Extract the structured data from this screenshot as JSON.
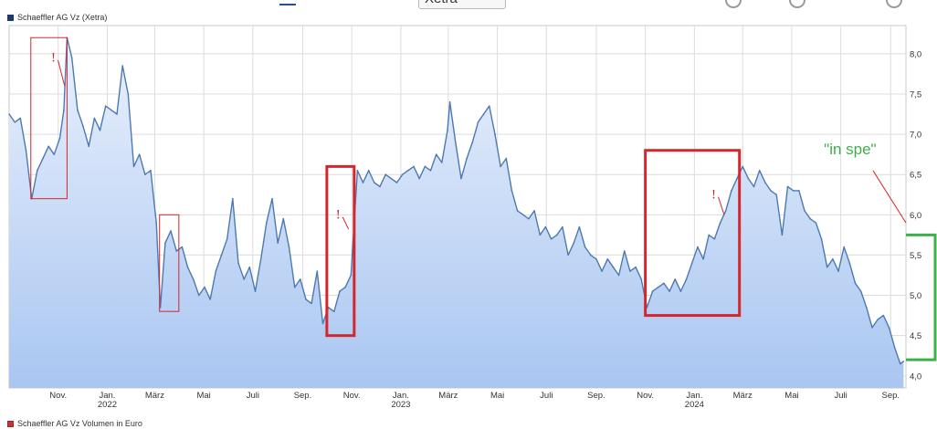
{
  "header": {
    "exchange_select": "Xetra"
  },
  "colors": {
    "line": "#4d79b1",
    "fill_top": "#eaf1fc",
    "fill_bottom": "#a9c6f1",
    "grid": "#dcdcdc",
    "annotation_red": "#d4262d",
    "annotation_green": "#3cb04a"
  },
  "chart_data": {
    "type": "area",
    "title": "Schaeffler AG Vz (Xetra)",
    "volume_legend": "Schaeffler AG Vz Volumen in Euro",
    "y_axis_side": "right",
    "ylim": [
      3.85,
      8.35
    ],
    "y_ticks": [
      "4,0",
      "4,5",
      "5,0",
      "5,5",
      "6,0",
      "6,5",
      "7,0",
      "7,5",
      "8,0"
    ],
    "y_tick_values": [
      4.0,
      4.5,
      5.0,
      5.5,
      6.0,
      6.5,
      7.0,
      7.5,
      8.0
    ],
    "xlim": [
      "2021-09-01",
      "2024-09-20"
    ],
    "x_ticks": [
      {
        "date": "2021-11-01",
        "label": "Nov.",
        "year": ""
      },
      {
        "date": "2022-01-01",
        "label": "Jan.",
        "year": "2022"
      },
      {
        "date": "2022-03-01",
        "label": "März",
        "year": ""
      },
      {
        "date": "2022-05-01",
        "label": "Mai",
        "year": ""
      },
      {
        "date": "2022-07-01",
        "label": "Juli",
        "year": ""
      },
      {
        "date": "2022-09-01",
        "label": "Sep.",
        "year": ""
      },
      {
        "date": "2022-11-01",
        "label": "Nov.",
        "year": ""
      },
      {
        "date": "2023-01-01",
        "label": "Jan.",
        "year": "2023"
      },
      {
        "date": "2023-03-01",
        "label": "März",
        "year": ""
      },
      {
        "date": "2023-05-01",
        "label": "Mai",
        "year": ""
      },
      {
        "date": "2023-07-01",
        "label": "Juli",
        "year": ""
      },
      {
        "date": "2023-09-01",
        "label": "Sep.",
        "year": ""
      },
      {
        "date": "2023-11-01",
        "label": "Nov.",
        "year": ""
      },
      {
        "date": "2024-01-01",
        "label": "Jan.",
        "year": "2024"
      },
      {
        "date": "2024-03-01",
        "label": "März",
        "year": ""
      },
      {
        "date": "2024-05-01",
        "label": "Mai",
        "year": ""
      },
      {
        "date": "2024-07-01",
        "label": "Juli",
        "year": ""
      },
      {
        "date": "2024-09-01",
        "label": "Sep.",
        "year": ""
      }
    ],
    "grid": true,
    "series": [
      {
        "points": [
          [
            "2021-09-01",
            7.25
          ],
          [
            "2021-09-08",
            7.15
          ],
          [
            "2021-09-15",
            7.2
          ],
          [
            "2021-09-22",
            6.8
          ],
          [
            "2021-09-29",
            6.2
          ],
          [
            "2021-10-06",
            6.55
          ],
          [
            "2021-10-13",
            6.7
          ],
          [
            "2021-10-20",
            6.85
          ],
          [
            "2021-10-27",
            6.75
          ],
          [
            "2021-11-03",
            6.95
          ],
          [
            "2021-11-08",
            7.3
          ],
          [
            "2021-11-12",
            8.2
          ],
          [
            "2021-11-18",
            7.95
          ],
          [
            "2021-11-25",
            7.3
          ],
          [
            "2021-12-02",
            7.1
          ],
          [
            "2021-12-09",
            6.85
          ],
          [
            "2021-12-16",
            7.2
          ],
          [
            "2021-12-23",
            7.05
          ],
          [
            "2021-12-30",
            7.35
          ],
          [
            "2022-01-06",
            7.3
          ],
          [
            "2022-01-13",
            7.25
          ],
          [
            "2022-01-20",
            7.85
          ],
          [
            "2022-01-27",
            7.5
          ],
          [
            "2022-02-03",
            6.6
          ],
          [
            "2022-02-10",
            6.75
          ],
          [
            "2022-02-17",
            6.5
          ],
          [
            "2022-02-24",
            6.55
          ],
          [
            "2022-03-03",
            5.9
          ],
          [
            "2022-03-08",
            4.85
          ],
          [
            "2022-03-14",
            5.65
          ],
          [
            "2022-03-21",
            5.8
          ],
          [
            "2022-03-28",
            5.55
          ],
          [
            "2022-04-04",
            5.6
          ],
          [
            "2022-04-11",
            5.35
          ],
          [
            "2022-04-18",
            5.2
          ],
          [
            "2022-04-25",
            5.0
          ],
          [
            "2022-05-02",
            5.1
          ],
          [
            "2022-05-09",
            4.95
          ],
          [
            "2022-05-16",
            5.3
          ],
          [
            "2022-05-23",
            5.5
          ],
          [
            "2022-05-30",
            5.7
          ],
          [
            "2022-06-06",
            6.2
          ],
          [
            "2022-06-13",
            5.4
          ],
          [
            "2022-06-20",
            5.2
          ],
          [
            "2022-06-27",
            5.35
          ],
          [
            "2022-07-04",
            5.05
          ],
          [
            "2022-07-11",
            5.45
          ],
          [
            "2022-07-18",
            5.9
          ],
          [
            "2022-07-25",
            6.2
          ],
          [
            "2022-08-01",
            5.65
          ],
          [
            "2022-08-08",
            5.95
          ],
          [
            "2022-08-15",
            5.6
          ],
          [
            "2022-08-22",
            5.1
          ],
          [
            "2022-08-29",
            5.2
          ],
          [
            "2022-09-05",
            4.95
          ],
          [
            "2022-09-12",
            4.9
          ],
          [
            "2022-09-19",
            5.3
          ],
          [
            "2022-09-26",
            4.65
          ],
          [
            "2022-10-03",
            4.85
          ],
          [
            "2022-10-10",
            4.8
          ],
          [
            "2022-10-17",
            5.05
          ],
          [
            "2022-10-24",
            5.1
          ],
          [
            "2022-10-31",
            5.25
          ],
          [
            "2022-11-04",
            5.9
          ],
          [
            "2022-11-08",
            6.55
          ],
          [
            "2022-11-15",
            6.4
          ],
          [
            "2022-11-22",
            6.55
          ],
          [
            "2022-11-29",
            6.4
          ],
          [
            "2022-12-06",
            6.35
          ],
          [
            "2022-12-13",
            6.5
          ],
          [
            "2022-12-20",
            6.45
          ],
          [
            "2022-12-27",
            6.4
          ],
          [
            "2023-01-03",
            6.5
          ],
          [
            "2023-01-10",
            6.55
          ],
          [
            "2023-01-17",
            6.6
          ],
          [
            "2023-01-24",
            6.45
          ],
          [
            "2023-01-31",
            6.6
          ],
          [
            "2023-02-07",
            6.55
          ],
          [
            "2023-02-14",
            6.75
          ],
          [
            "2023-02-21",
            6.65
          ],
          [
            "2023-02-28",
            7.05
          ],
          [
            "2023-03-03",
            7.4
          ],
          [
            "2023-03-10",
            6.9
          ],
          [
            "2023-03-17",
            6.45
          ],
          [
            "2023-03-24",
            6.7
          ],
          [
            "2023-03-31",
            6.9
          ],
          [
            "2023-04-07",
            7.15
          ],
          [
            "2023-04-14",
            7.25
          ],
          [
            "2023-04-21",
            7.35
          ],
          [
            "2023-04-28",
            7.0
          ],
          [
            "2023-05-05",
            6.6
          ],
          [
            "2023-05-12",
            6.7
          ],
          [
            "2023-05-19",
            6.3
          ],
          [
            "2023-05-26",
            6.05
          ],
          [
            "2023-06-02",
            6.0
          ],
          [
            "2023-06-09",
            5.95
          ],
          [
            "2023-06-16",
            6.05
          ],
          [
            "2023-06-23",
            5.75
          ],
          [
            "2023-06-30",
            5.85
          ],
          [
            "2023-07-07",
            5.7
          ],
          [
            "2023-07-14",
            5.75
          ],
          [
            "2023-07-21",
            5.85
          ],
          [
            "2023-07-28",
            5.5
          ],
          [
            "2023-08-04",
            5.65
          ],
          [
            "2023-08-11",
            5.85
          ],
          [
            "2023-08-18",
            5.6
          ],
          [
            "2023-08-25",
            5.5
          ],
          [
            "2023-09-01",
            5.45
          ],
          [
            "2023-09-08",
            5.3
          ],
          [
            "2023-09-15",
            5.45
          ],
          [
            "2023-09-22",
            5.35
          ],
          [
            "2023-09-29",
            5.25
          ],
          [
            "2023-10-06",
            5.55
          ],
          [
            "2023-10-13",
            5.3
          ],
          [
            "2023-10-20",
            5.35
          ],
          [
            "2023-10-27",
            5.2
          ],
          [
            "2023-11-03",
            4.85
          ],
          [
            "2023-11-10",
            5.05
          ],
          [
            "2023-11-17",
            5.1
          ],
          [
            "2023-11-24",
            5.15
          ],
          [
            "2023-12-01",
            5.05
          ],
          [
            "2023-12-08",
            5.2
          ],
          [
            "2023-12-15",
            5.05
          ],
          [
            "2023-12-22",
            5.2
          ],
          [
            "2023-12-29",
            5.4
          ],
          [
            "2024-01-05",
            5.6
          ],
          [
            "2024-01-12",
            5.45
          ],
          [
            "2024-01-19",
            5.75
          ],
          [
            "2024-01-26",
            5.7
          ],
          [
            "2024-02-02",
            5.9
          ],
          [
            "2024-02-09",
            6.05
          ],
          [
            "2024-02-16",
            6.3
          ],
          [
            "2024-02-23",
            6.45
          ],
          [
            "2024-03-01",
            6.6
          ],
          [
            "2024-03-08",
            6.45
          ],
          [
            "2024-03-15",
            6.35
          ],
          [
            "2024-03-22",
            6.55
          ],
          [
            "2024-03-29",
            6.4
          ],
          [
            "2024-04-05",
            6.3
          ],
          [
            "2024-04-12",
            6.25
          ],
          [
            "2024-04-19",
            5.75
          ],
          [
            "2024-04-26",
            6.35
          ],
          [
            "2024-05-03",
            6.3
          ],
          [
            "2024-05-10",
            6.3
          ],
          [
            "2024-05-17",
            6.05
          ],
          [
            "2024-05-24",
            5.95
          ],
          [
            "2024-05-31",
            5.9
          ],
          [
            "2024-06-07",
            5.7
          ],
          [
            "2024-06-14",
            5.35
          ],
          [
            "2024-06-21",
            5.45
          ],
          [
            "2024-06-28",
            5.3
          ],
          [
            "2024-07-05",
            5.6
          ],
          [
            "2024-07-12",
            5.4
          ],
          [
            "2024-07-19",
            5.15
          ],
          [
            "2024-07-26",
            5.05
          ],
          [
            "2024-08-02",
            4.85
          ],
          [
            "2024-08-09",
            4.6
          ],
          [
            "2024-08-16",
            4.7
          ],
          [
            "2024-08-23",
            4.75
          ],
          [
            "2024-08-30",
            4.6
          ],
          [
            "2024-09-06",
            4.35
          ],
          [
            "2024-09-13",
            4.15
          ],
          [
            "2024-09-17",
            4.18
          ]
        ]
      }
    ],
    "annotations": {
      "red_marks": [
        {
          "text": "!",
          "date": "2021-10-26",
          "value": 7.9,
          "leader_to": [
            "2021-11-09",
            7.6
          ]
        },
        {
          "text": "!",
          "date": "2022-10-15",
          "value": 5.95,
          "leader_to": [
            "2022-10-28",
            5.82
          ]
        },
        {
          "text": "!",
          "date": "2024-01-25",
          "value": 6.2,
          "leader_to": [
            "2024-02-07",
            6.0
          ]
        }
      ],
      "boxes": [
        {
          "from": "2021-09-28",
          "to": "2021-11-12",
          "top": 8.2,
          "bottom": 6.2,
          "style": "thin"
        },
        {
          "from": "2022-03-07",
          "to": "2022-03-31",
          "top": 6.0,
          "bottom": 4.8,
          "style": "thin"
        },
        {
          "from": "2022-10-01",
          "to": "2022-11-04",
          "top": 6.6,
          "bottom": 4.5,
          "style": "thick"
        },
        {
          "from": "2023-11-01",
          "to": "2024-02-26",
          "top": 6.8,
          "bottom": 4.75,
          "style": "thick"
        }
      ],
      "projection": {
        "text": "\"in spe\"",
        "box_top": 5.75,
        "box_bottom": 4.2,
        "label_date": "2024-06-10",
        "label_value": 6.75,
        "leader_from": [
          "2024-08-10",
          6.55
        ],
        "leader_to": [
          "2024-09-20",
          5.9
        ]
      }
    }
  }
}
